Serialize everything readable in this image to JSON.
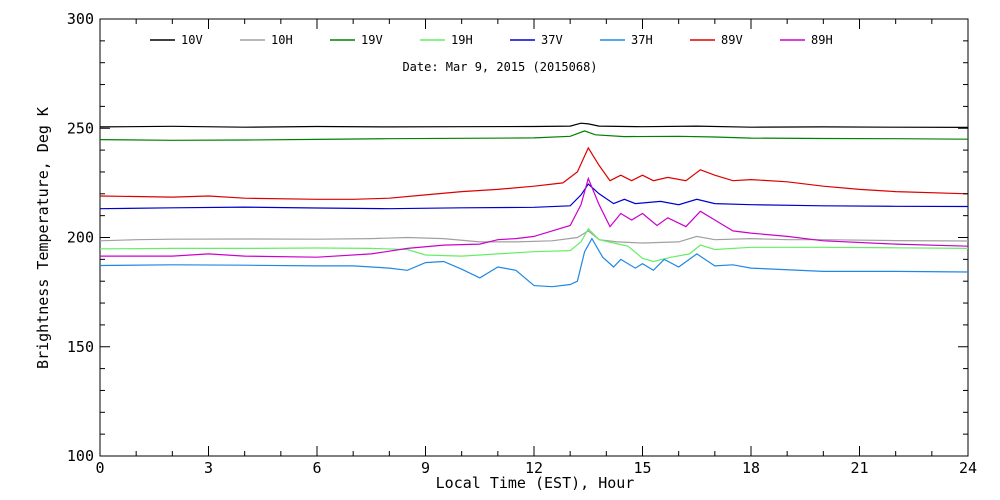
{
  "chart_data": {
    "type": "line",
    "title": "",
    "subtitle": "Date: Mar  9, 2015 (2015068)",
    "xlabel": "Local Time (EST), Hour",
    "ylabel": "Brightness Temperature, Deg K",
    "xlim": [
      0,
      24
    ],
    "ylim": [
      100,
      300
    ],
    "x_ticks": [
      0,
      3,
      6,
      9,
      12,
      15,
      18,
      21,
      24
    ],
    "y_ticks": [
      100,
      150,
      200,
      250,
      300
    ],
    "x_tick_labels": [
      "0",
      "3",
      "6",
      "9",
      "12",
      "15",
      "18",
      "21",
      "24"
    ],
    "y_tick_labels": [
      "100",
      "150",
      "200",
      "250",
      "300"
    ],
    "grid": false,
    "legend_position": "top",
    "series": [
      {
        "name": "10V",
        "color": "#000000",
        "points": [
          [
            0,
            250.6
          ],
          [
            2,
            250.9
          ],
          [
            4,
            250.5
          ],
          [
            6,
            250.8
          ],
          [
            8,
            250.6
          ],
          [
            10,
            250.7
          ],
          [
            12,
            250.8
          ],
          [
            13,
            251.0
          ],
          [
            13.3,
            252.3
          ],
          [
            13.5,
            252.0
          ],
          [
            13.8,
            251.0
          ],
          [
            15,
            250.7
          ],
          [
            16.5,
            251.0
          ],
          [
            18,
            250.5
          ],
          [
            20,
            250.6
          ],
          [
            22,
            250.5
          ],
          [
            24,
            250.4
          ]
        ]
      },
      {
        "name": "10H",
        "color": "#a0a0a0",
        "points": [
          [
            0,
            198.5
          ],
          [
            1,
            199.0
          ],
          [
            2,
            199.2
          ],
          [
            4,
            199.3
          ],
          [
            6,
            199.2
          ],
          [
            7.5,
            199.5
          ],
          [
            8.5,
            200.0
          ],
          [
            9.5,
            199.5
          ],
          [
            10.5,
            198.0
          ],
          [
            11.5,
            198.0
          ],
          [
            12.5,
            198.5
          ],
          [
            13.2,
            200.0
          ],
          [
            13.5,
            203.0
          ],
          [
            13.8,
            199.0
          ],
          [
            14.3,
            198.0
          ],
          [
            15,
            197.5
          ],
          [
            16,
            198.0
          ],
          [
            16.5,
            200.5
          ],
          [
            17,
            199.0
          ],
          [
            18,
            199.5
          ],
          [
            19,
            199.0
          ],
          [
            20,
            199.0
          ],
          [
            22,
            198.6
          ],
          [
            24,
            198.4
          ]
        ]
      },
      {
        "name": "19V",
        "color": "#008000",
        "points": [
          [
            0,
            244.8
          ],
          [
            2,
            244.5
          ],
          [
            4,
            244.6
          ],
          [
            6,
            244.9
          ],
          [
            8,
            245.2
          ],
          [
            10,
            245.4
          ],
          [
            12,
            245.6
          ],
          [
            13,
            246.3
          ],
          [
            13.4,
            248.8
          ],
          [
            13.7,
            247.0
          ],
          [
            14.5,
            246.2
          ],
          [
            16,
            246.3
          ],
          [
            17,
            246.0
          ],
          [
            18,
            245.5
          ],
          [
            20,
            245.3
          ],
          [
            22,
            245.2
          ],
          [
            24,
            245.0
          ]
        ]
      },
      {
        "name": "19H",
        "color": "#66ee66",
        "points": [
          [
            0,
            194.8
          ],
          [
            2,
            195.0
          ],
          [
            4,
            195.0
          ],
          [
            6,
            195.2
          ],
          [
            7.5,
            195.0
          ],
          [
            8.5,
            194.5
          ],
          [
            9,
            192.0
          ],
          [
            10,
            191.5
          ],
          [
            11,
            192.5
          ],
          [
            12,
            193.5
          ],
          [
            13,
            194.0
          ],
          [
            13.3,
            198.0
          ],
          [
            13.5,
            204.0
          ],
          [
            13.8,
            199.0
          ],
          [
            14.2,
            197.5
          ],
          [
            14.6,
            196.0
          ],
          [
            15,
            190.5
          ],
          [
            15.3,
            189.0
          ],
          [
            15.8,
            191.0
          ],
          [
            16.3,
            192.5
          ],
          [
            16.6,
            196.5
          ],
          [
            17,
            194.5
          ],
          [
            18,
            195.5
          ],
          [
            20,
            195.5
          ],
          [
            22,
            195.3
          ],
          [
            24,
            195.0
          ]
        ]
      },
      {
        "name": "37V",
        "color": "#0000cc",
        "points": [
          [
            0,
            213.2
          ],
          [
            2,
            213.6
          ],
          [
            4,
            213.9
          ],
          [
            6,
            213.5
          ],
          [
            8,
            213.2
          ],
          [
            10,
            213.6
          ],
          [
            12,
            213.8
          ],
          [
            13,
            214.5
          ],
          [
            13.3,
            219.5
          ],
          [
            13.5,
            224.5
          ],
          [
            13.8,
            220.0
          ],
          [
            14.2,
            215.5
          ],
          [
            14.5,
            217.5
          ],
          [
            14.8,
            215.5
          ],
          [
            15.5,
            216.5
          ],
          [
            16,
            215.0
          ],
          [
            16.5,
            217.5
          ],
          [
            17,
            215.5
          ],
          [
            18,
            215.0
          ],
          [
            20,
            214.5
          ],
          [
            22,
            214.3
          ],
          [
            24,
            214.2
          ]
        ]
      },
      {
        "name": "37H",
        "color": "#1e88e5",
        "points": [
          [
            0,
            187.2
          ],
          [
            2,
            187.5
          ],
          [
            4,
            187.3
          ],
          [
            6,
            187.0
          ],
          [
            7,
            187.0
          ],
          [
            8,
            186.0
          ],
          [
            8.5,
            185.0
          ],
          [
            9,
            188.5
          ],
          [
            9.5,
            189.0
          ],
          [
            10,
            185.5
          ],
          [
            10.5,
            181.5
          ],
          [
            11,
            186.5
          ],
          [
            11.5,
            185.0
          ],
          [
            12,
            178.0
          ],
          [
            12.5,
            177.5
          ],
          [
            13,
            178.5
          ],
          [
            13.2,
            180.0
          ],
          [
            13.4,
            193.5
          ],
          [
            13.6,
            199.5
          ],
          [
            13.9,
            191.0
          ],
          [
            14.2,
            186.5
          ],
          [
            14.4,
            190.0
          ],
          [
            14.8,
            186.0
          ],
          [
            15,
            188.0
          ],
          [
            15.3,
            185.0
          ],
          [
            15.6,
            190.0
          ],
          [
            16,
            186.5
          ],
          [
            16.5,
            192.5
          ],
          [
            17,
            187.0
          ],
          [
            17.5,
            187.5
          ],
          [
            18,
            186.0
          ],
          [
            20,
            184.5
          ],
          [
            22,
            184.5
          ],
          [
            24,
            184.2
          ]
        ]
      },
      {
        "name": "89V",
        "color": "#dd0000",
        "points": [
          [
            0,
            219.0
          ],
          [
            2,
            218.5
          ],
          [
            3,
            219.0
          ],
          [
            4,
            218.0
          ],
          [
            6,
            217.5
          ],
          [
            7,
            217.5
          ],
          [
            8,
            218.0
          ],
          [
            9,
            219.5
          ],
          [
            10,
            221.0
          ],
          [
            11,
            222.0
          ],
          [
            12,
            223.5
          ],
          [
            12.8,
            225.0
          ],
          [
            13.2,
            230.0
          ],
          [
            13.5,
            241.0
          ],
          [
            13.8,
            233.0
          ],
          [
            14.1,
            226.0
          ],
          [
            14.4,
            228.5
          ],
          [
            14.7,
            226.0
          ],
          [
            15,
            228.5
          ],
          [
            15.3,
            226.0
          ],
          [
            15.7,
            227.5
          ],
          [
            16.2,
            226.0
          ],
          [
            16.6,
            231.0
          ],
          [
            17,
            228.5
          ],
          [
            17.5,
            226.0
          ],
          [
            18,
            226.5
          ],
          [
            19,
            225.5
          ],
          [
            20,
            223.5
          ],
          [
            21,
            222.0
          ],
          [
            22,
            221.0
          ],
          [
            24,
            220.0
          ]
        ]
      },
      {
        "name": "89H",
        "color": "#cc00cc",
        "points": [
          [
            0,
            191.5
          ],
          [
            2,
            191.5
          ],
          [
            3,
            192.5
          ],
          [
            4,
            191.5
          ],
          [
            6,
            191.0
          ],
          [
            7.5,
            192.5
          ],
          [
            8.5,
            195.0
          ],
          [
            9.5,
            196.5
          ],
          [
            10.5,
            197.0
          ],
          [
            11,
            199.0
          ],
          [
            11.5,
            199.5
          ],
          [
            12,
            200.5
          ],
          [
            12.5,
            203.0
          ],
          [
            13,
            205.5
          ],
          [
            13.3,
            215.0
          ],
          [
            13.5,
            227.0
          ],
          [
            13.8,
            215.0
          ],
          [
            14.1,
            205.0
          ],
          [
            14.4,
            211.0
          ],
          [
            14.7,
            208.0
          ],
          [
            15,
            211.0
          ],
          [
            15.4,
            205.5
          ],
          [
            15.7,
            209.0
          ],
          [
            16.2,
            205.0
          ],
          [
            16.6,
            212.0
          ],
          [
            17,
            208.0
          ],
          [
            17.5,
            203.0
          ],
          [
            18,
            202.0
          ],
          [
            19,
            200.5
          ],
          [
            20,
            198.5
          ],
          [
            22,
            197.0
          ],
          [
            24,
            196.0
          ]
        ]
      }
    ]
  }
}
